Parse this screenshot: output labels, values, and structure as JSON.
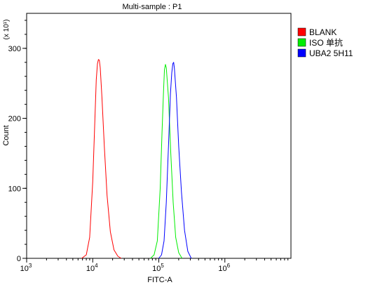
{
  "chart_data": {
    "type": "line",
    "title": "Multi-sample : P1",
    "xlabel": "FITC-A",
    "ylabel": "Count",
    "y_multiplier": "(x 10¹)",
    "x_scale": "log",
    "xlim": [
      1000,
      10000000
    ],
    "ylim": [
      0,
      350
    ],
    "x_ticks": [
      {
        "value": 1000,
        "base": "10",
        "exp": "3"
      },
      {
        "value": 10000,
        "base": "10",
        "exp": "4"
      },
      {
        "value": 100000,
        "base": "10",
        "exp": "5"
      },
      {
        "value": 1000000,
        "base": "10",
        "exp": "6"
      }
    ],
    "y_ticks": [
      {
        "value": 0,
        "label": "0"
      },
      {
        "value": 100,
        "label": "100"
      },
      {
        "value": 200,
        "label": "200"
      },
      {
        "value": 300,
        "label": "300"
      }
    ],
    "legend_position": "right",
    "series": [
      {
        "name": "BLANK",
        "color": "#ff0000",
        "points": [
          [
            6800,
            0
          ],
          [
            8000,
            5
          ],
          [
            9000,
            30
          ],
          [
            10000,
            110
          ],
          [
            10800,
            200
          ],
          [
            11300,
            255
          ],
          [
            11800,
            278
          ],
          [
            12200,
            284
          ],
          [
            12600,
            283
          ],
          [
            13000,
            272
          ],
          [
            13800,
            230
          ],
          [
            15000,
            160
          ],
          [
            16500,
            90
          ],
          [
            18500,
            38
          ],
          [
            21000,
            12
          ],
          [
            24000,
            3
          ],
          [
            27000,
            0
          ]
        ]
      },
      {
        "name": "ISO 单抗",
        "color": "#00ee00",
        "points": [
          [
            75000,
            0
          ],
          [
            85000,
            5
          ],
          [
            95000,
            25
          ],
          [
            105000,
            100
          ],
          [
            112000,
            180
          ],
          [
            118000,
            240
          ],
          [
            122000,
            270
          ],
          [
            126000,
            277
          ],
          [
            130000,
            272
          ],
          [
            140000,
            230
          ],
          [
            152000,
            150
          ],
          [
            165000,
            80
          ],
          [
            180000,
            30
          ],
          [
            200000,
            8
          ],
          [
            225000,
            0
          ]
        ]
      },
      {
        "name": "UBA2 5H11",
        "color": "#0000ff",
        "points": [
          [
            100000,
            0
          ],
          [
            110000,
            5
          ],
          [
            120000,
            25
          ],
          [
            130000,
            80
          ],
          [
            140000,
            160
          ],
          [
            150000,
            235
          ],
          [
            157000,
            265
          ],
          [
            163000,
            278
          ],
          [
            168000,
            280
          ],
          [
            172000,
            272
          ],
          [
            185000,
            230
          ],
          [
            200000,
            160
          ],
          [
            220000,
            95
          ],
          [
            245000,
            40
          ],
          [
            275000,
            10
          ],
          [
            310000,
            0
          ]
        ]
      }
    ]
  }
}
